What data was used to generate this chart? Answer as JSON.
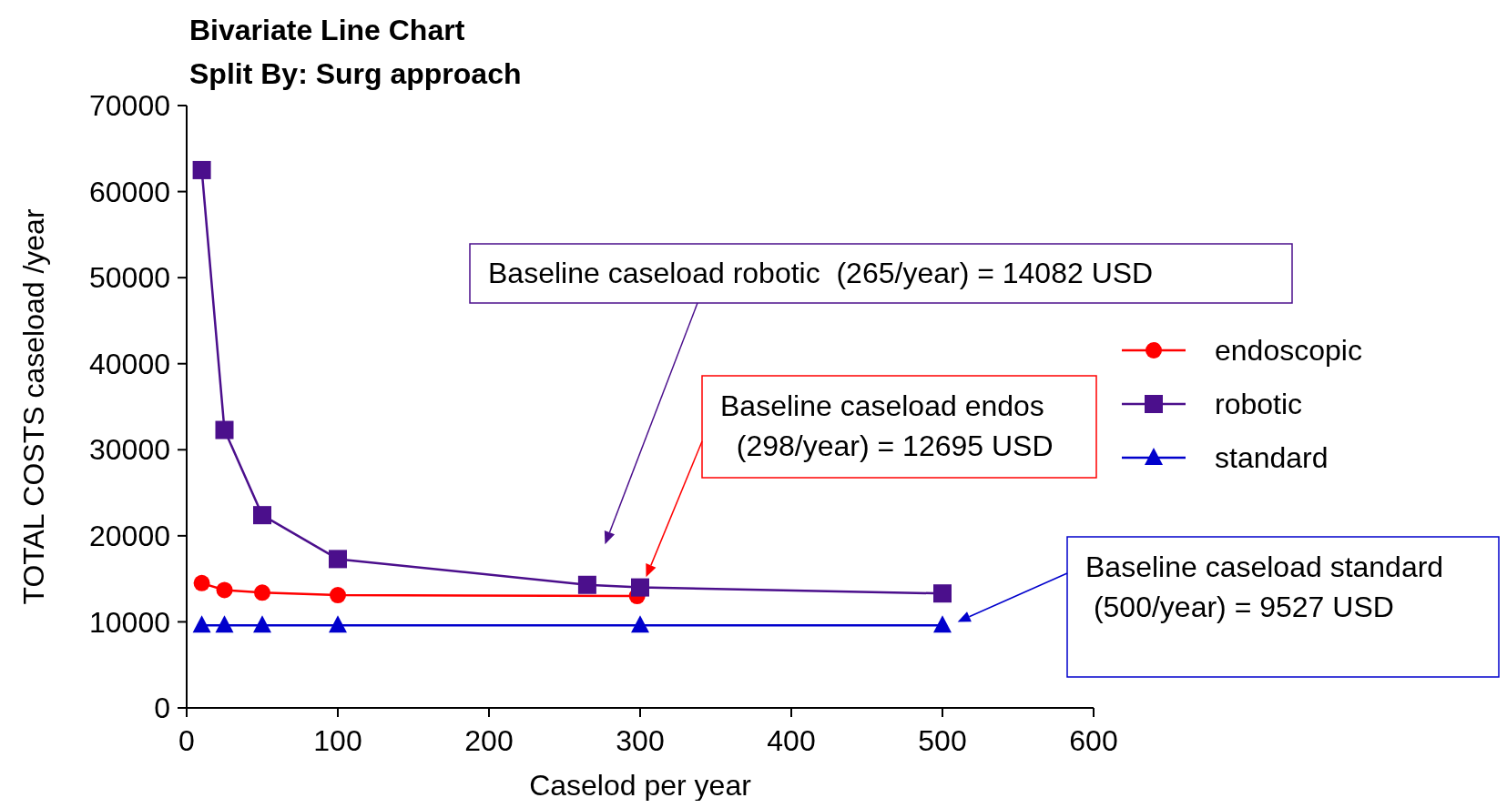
{
  "chart_data": {
    "type": "line",
    "title": "Bivariate Line Chart",
    "subtitle": "Split By: Surg approach",
    "xlabel": "Caselod per year",
    "ylabel": "TOTAL COSTS caseload /year",
    "xlim": [
      0,
      600
    ],
    "xticks": [
      0,
      100,
      200,
      300,
      400,
      500,
      600
    ],
    "ylim": [
      0,
      70000
    ],
    "yticks": [
      0,
      10000,
      20000,
      30000,
      40000,
      50000,
      60000,
      70000
    ],
    "legend": "right",
    "grid": false,
    "series": [
      {
        "name": "endoscopic",
        "color": "#ff0000",
        "marker": "circle",
        "x": [
          10,
          25,
          50,
          100,
          298
        ],
        "values": [
          14500,
          13700,
          13400,
          13100,
          13000
        ]
      },
      {
        "name": "robotic",
        "color": "#4b0f8c",
        "marker": "square",
        "x": [
          10,
          25,
          50,
          100,
          265,
          300,
          500
        ],
        "values": [
          62500,
          32300,
          22400,
          17300,
          14300,
          14000,
          13300
        ]
      },
      {
        "name": "standard",
        "color": "#0000cc",
        "marker": "triangle",
        "x": [
          10,
          25,
          50,
          100,
          300,
          500
        ],
        "values": [
          9600,
          9600,
          9600,
          9600,
          9600,
          9600
        ]
      }
    ],
    "annotations": [
      "Baseline caseload endos\n  (298/year) = 12695 USD",
      "Baseline caseload robotic  (265/year) = 14082 USD",
      "Baseline caseload standard\n (500/year) = 9527 USD"
    ]
  }
}
